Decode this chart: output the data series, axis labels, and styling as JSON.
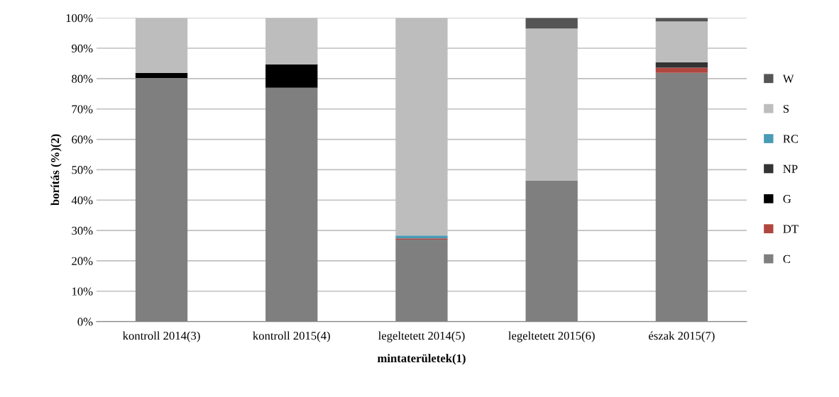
{
  "chart_data": {
    "type": "bar",
    "stacked": true,
    "xlabel": "mintaterületek(1)",
    "ylabel": "borítás (%)(2)",
    "categories": [
      "kontroll 2014(3)",
      "kontroll 2015(4)",
      "legeltetett 2014(5)",
      "legeltetett 2015(6)",
      "észak 2015(7)"
    ],
    "series": [
      {
        "name": "C",
        "color": "#7f7f7f",
        "values": [
          80.2,
          77.0,
          27.0,
          46.5,
          81.9
        ]
      },
      {
        "name": "DT",
        "color": "#b0473f",
        "values": [
          0,
          0,
          0.4,
          0,
          1.7
        ]
      },
      {
        "name": "G",
        "color": "#000000",
        "values": [
          1.7,
          7.7,
          0,
          0,
          0
        ]
      },
      {
        "name": "NP",
        "color": "#333333",
        "values": [
          0,
          0,
          0,
          0,
          1.8
        ]
      },
      {
        "name": "RC",
        "color": "#4a9bb5",
        "values": [
          0,
          0,
          0.9,
          0,
          0
        ]
      },
      {
        "name": "S",
        "color": "#bdbdbd",
        "values": [
          18.1,
          15.3,
          71.7,
          50.0,
          13.4
        ]
      },
      {
        "name": "W",
        "color": "#555555",
        "values": [
          0,
          0,
          0,
          3.5,
          1.2
        ]
      }
    ],
    "ylim": [
      0,
      100
    ],
    "yticks": [
      {
        "value": 0,
        "label": "0%"
      },
      {
        "value": 10,
        "label": "10%"
      },
      {
        "value": 20,
        "label": "20%"
      },
      {
        "value": 30,
        "label": "30%"
      },
      {
        "value": 40,
        "label": "40%"
      },
      {
        "value": 50,
        "label": "50%"
      },
      {
        "value": 60,
        "label": "60%"
      },
      {
        "value": 70,
        "label": "70%"
      },
      {
        "value": 80,
        "label": "80%"
      },
      {
        "value": 90,
        "label": "90%"
      },
      {
        "value": 100,
        "label": "100%"
      }
    ],
    "grid": "y",
    "legend": "right"
  }
}
